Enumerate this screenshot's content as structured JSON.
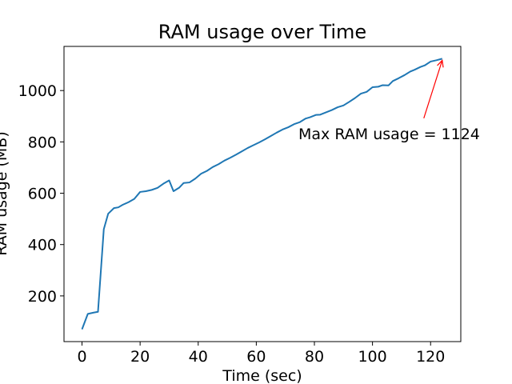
{
  "chart_data": {
    "type": "line",
    "title": "RAM usage over Time",
    "xlabel": "Time (sec)",
    "ylabel": "RAM usage (MB)",
    "xlim": [
      -6.2,
      130.4
    ],
    "ylim": [
      22,
      1172
    ],
    "x_ticks": [
      0,
      20,
      40,
      60,
      80,
      100,
      120
    ],
    "y_ticks": [
      200,
      400,
      600,
      800,
      1000
    ],
    "grid": false,
    "line_color": "#1f77b4",
    "annotation_color": "#ff0000",
    "series": [
      {
        "x": [
          0,
          2,
          4,
          5.5,
          7.5,
          9,
          11,
          12.5,
          14,
          16,
          18,
          20,
          22,
          24,
          26,
          28,
          30,
          31.5,
          33.5,
          35,
          37,
          39,
          41,
          43,
          45,
          47,
          49,
          51,
          53,
          55,
          57,
          59,
          61,
          63,
          65,
          67,
          69,
          71,
          73,
          75,
          77,
          78.5,
          80.5,
          82,
          84,
          86,
          88,
          90,
          92,
          94,
          96,
          98,
          100,
          102,
          103.5,
          105.5,
          107,
          109,
          111,
          113,
          114.5,
          116.5,
          118,
          120,
          122,
          124
        ],
        "y": [
          70,
          130,
          135,
          138,
          460,
          520,
          542,
          545,
          555,
          565,
          578,
          605,
          608,
          613,
          621,
          637,
          650,
          608,
          622,
          640,
          642,
          657,
          676,
          687,
          702,
          713,
          727,
          738,
          750,
          763,
          776,
          787,
          798,
          810,
          823,
          836,
          848,
          857,
          869,
          877,
          891,
          896,
          905,
          906,
          915,
          924,
          935,
          942,
          956,
          971,
          988,
          995,
          1013,
          1015,
          1021,
          1020,
          1037,
          1048,
          1060,
          1074,
          1081,
          1092,
          1098,
          1113,
          1118,
          1124
        ]
      }
    ],
    "annotations": [
      {
        "text": "Max RAM usage = 1124",
        "x": 124,
        "y": 1124,
        "text_x": 74.5,
        "text_y": 833
      }
    ]
  }
}
